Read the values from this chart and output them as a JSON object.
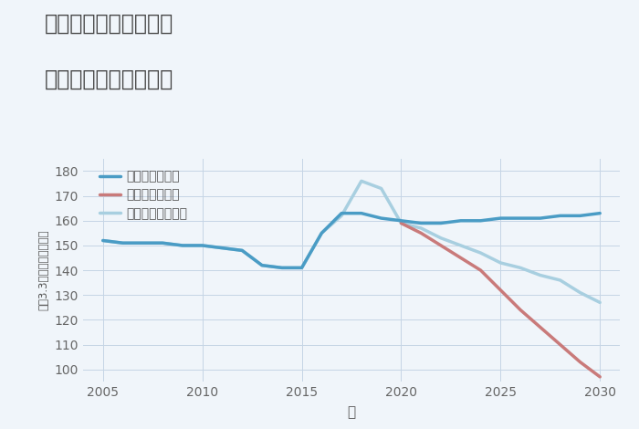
{
  "title_line1": "兵庫県西宮市門前町の",
  "title_line2": "中古戸建ての価格推移",
  "xlabel": "年",
  "ylabel": "平（3.3㎡）単価（万円）",
  "background_color": "#f0f5fa",
  "grid_color": "#c5d5e5",
  "ylim": [
    95,
    185
  ],
  "yticks": [
    100,
    110,
    120,
    130,
    140,
    150,
    160,
    170,
    180
  ],
  "xlim": [
    2004,
    2031
  ],
  "xticks": [
    2005,
    2010,
    2015,
    2020,
    2025,
    2030
  ],
  "good_scenario": {
    "label": "グッドシナリオ",
    "color": "#4a9cc5",
    "linewidth": 2.5,
    "x": [
      2005,
      2006,
      2007,
      2008,
      2009,
      2010,
      2011,
      2012,
      2013,
      2014,
      2015,
      2016,
      2017,
      2018,
      2019,
      2020,
      2021,
      2022,
      2023,
      2024,
      2025,
      2026,
      2027,
      2028,
      2029,
      2030
    ],
    "y": [
      152,
      151,
      151,
      151,
      150,
      150,
      149,
      148,
      142,
      141,
      141,
      155,
      163,
      163,
      161,
      160,
      159,
      159,
      160,
      160,
      161,
      161,
      161,
      162,
      162,
      163
    ]
  },
  "bad_scenario": {
    "label": "バッドシナリオ",
    "color": "#c97a7a",
    "linewidth": 2.5,
    "x": [
      2020,
      2021,
      2022,
      2023,
      2024,
      2025,
      2026,
      2027,
      2028,
      2029,
      2030
    ],
    "y": [
      159,
      155,
      150,
      145,
      140,
      132,
      124,
      117,
      110,
      103,
      97
    ]
  },
  "normal_scenario": {
    "label": "ノーマルシナリオ",
    "color": "#a8cfe0",
    "linewidth": 2.5,
    "x": [
      2005,
      2006,
      2007,
      2008,
      2009,
      2010,
      2011,
      2012,
      2013,
      2014,
      2015,
      2016,
      2017,
      2018,
      2019,
      2020,
      2021,
      2022,
      2023,
      2024,
      2025,
      2026,
      2027,
      2028,
      2029,
      2030
    ],
    "y": [
      152,
      151,
      151,
      151,
      150,
      150,
      149,
      148,
      142,
      141,
      141,
      155,
      162,
      176,
      173,
      159,
      157,
      153,
      150,
      147,
      143,
      141,
      138,
      136,
      131,
      127
    ]
  },
  "title_fontsize": 17,
  "axis_fontsize": 10,
  "legend_fontsize": 10
}
